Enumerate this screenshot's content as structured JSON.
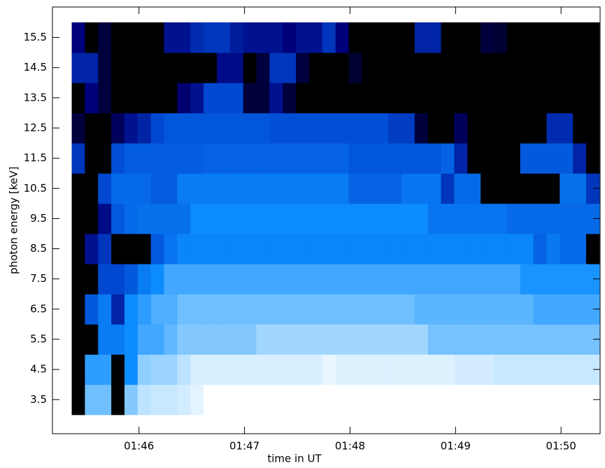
{
  "chart_data": {
    "type": "heatmap",
    "xlabel": "time in UT",
    "ylabel": "photon energy [keV]",
    "x": [
      45.425,
      45.55,
      45.675,
      45.8,
      45.925,
      46.05,
      46.175,
      46.3,
      46.425,
      46.55,
      46.675,
      46.8,
      46.925,
      47.05,
      47.175,
      47.3,
      47.425,
      47.55,
      47.675,
      47.8,
      47.925,
      48.05,
      48.175,
      48.3,
      48.425,
      48.55,
      48.675,
      48.8,
      48.925,
      49.05,
      49.175,
      49.3,
      49.425,
      49.55,
      49.675,
      49.8,
      49.925,
      50.05,
      50.175,
      50.3
    ],
    "y": [
      3.5,
      4.5,
      5.5,
      6.5,
      7.5,
      8.5,
      9.5,
      10.5,
      11.5,
      12.5,
      13.5,
      14.5,
      15.5
    ],
    "z": [
      [
        0,
        7.5,
        7.5,
        0,
        7.8,
        8.8,
        9,
        9,
        9.2,
        9.5,
        10,
        10,
        10,
        10,
        10,
        10,
        10,
        10,
        10,
        10,
        10,
        10,
        10,
        10,
        10,
        10,
        10,
        10,
        10,
        10,
        10,
        10,
        10,
        10,
        10,
        10,
        10,
        10,
        10,
        10
      ],
      [
        0,
        6.5,
        6.5,
        0,
        6,
        8,
        8.2,
        8.2,
        8.8,
        9.3,
        9.3,
        9.3,
        9.3,
        9.3,
        9.3,
        9.3,
        9.3,
        9.3,
        9.3,
        9.6,
        9.4,
        9.4,
        9.4,
        9.4,
        9.4,
        9.4,
        9.4,
        9.4,
        9.4,
        9.2,
        9.2,
        9.2,
        9,
        9,
        9,
        9,
        9,
        9,
        9,
        9
      ],
      [
        0,
        0,
        5.5,
        5.5,
        6,
        6.8,
        6.8,
        7.3,
        7.8,
        7.8,
        7.8,
        7.8,
        7.8,
        7.8,
        8.3,
        8.3,
        8.3,
        8.3,
        8.3,
        8.3,
        8.3,
        8.3,
        8.3,
        8.3,
        8.3,
        8.3,
        8.3,
        7.6,
        7.6,
        7.6,
        7.6,
        7.6,
        7.6,
        7.6,
        7.6,
        7.6,
        7.6,
        7.6,
        7.6,
        7.6
      ],
      [
        0,
        4.5,
        5.5,
        3,
        6,
        6.5,
        7,
        7,
        7.5,
        7.5,
        7.5,
        7.5,
        7.5,
        7.5,
        7.5,
        7.5,
        7.5,
        7.5,
        7.5,
        7.5,
        7.5,
        7.5,
        7.5,
        7.5,
        7.5,
        7.5,
        7.2,
        7.2,
        7.2,
        7.2,
        7.2,
        7.2,
        7.2,
        7.2,
        7.2,
        6.8,
        6.8,
        6.8,
        6.8,
        6.8
      ],
      [
        0,
        0,
        4,
        4,
        4.5,
        5.5,
        6,
        6.8,
        6.8,
        6.8,
        6.8,
        6.8,
        6.8,
        6.8,
        6.8,
        6.8,
        6.8,
        6.8,
        6.8,
        6.8,
        6.8,
        6.8,
        6.8,
        6.8,
        6.8,
        6.8,
        6.8,
        6.8,
        6.8,
        6.8,
        6.8,
        6.8,
        6.8,
        6.8,
        6.2,
        6.2,
        6.2,
        6.2,
        6.2,
        6.2
      ],
      [
        0,
        2.5,
        3.5,
        0,
        0,
        0,
        4.5,
        5.3,
        5.8,
        5.8,
        5.8,
        5.8,
        5.8,
        5.8,
        5.8,
        5.8,
        5.8,
        5.8,
        5.8,
        5.8,
        5.8,
        5.8,
        5.8,
        5.8,
        5.8,
        5.8,
        5.8,
        5.8,
        5.8,
        5.8,
        5.8,
        5.8,
        5.8,
        5.8,
        5.8,
        4.8,
        5.4,
        5,
        5,
        0
      ],
      [
        0,
        0,
        2.3,
        4.5,
        5,
        5.2,
        5.2,
        5.2,
        5.2,
        6,
        6,
        6,
        6,
        6,
        6,
        6,
        6,
        6,
        6,
        6,
        6,
        6,
        6,
        6,
        6,
        6,
        6,
        5.3,
        5.3,
        5.3,
        5.3,
        5.3,
        5.3,
        5,
        5,
        5,
        5,
        5,
        5,
        5
      ],
      [
        0,
        0,
        4,
        5,
        5,
        5,
        4.6,
        4.6,
        5.5,
        5.5,
        5.5,
        5.5,
        5.5,
        5.5,
        5.5,
        5.5,
        5.5,
        5.5,
        5.5,
        5.5,
        5.5,
        4.8,
        4.8,
        4.8,
        4.8,
        5.3,
        5.3,
        5.3,
        3.5,
        5,
        5,
        0,
        0,
        0,
        0,
        0,
        0,
        5.2,
        5.2,
        3.5
      ],
      [
        3.5,
        0,
        0,
        4.2,
        4.6,
        4.6,
        4.6,
        4.6,
        4.6,
        4.6,
        4.8,
        4.8,
        4.8,
        4.8,
        4.8,
        4.8,
        4.8,
        4.8,
        4.8,
        4.8,
        4.8,
        4.4,
        4.4,
        4.4,
        4.4,
        4.4,
        4.4,
        4.4,
        4.8,
        3,
        0,
        0,
        0,
        0,
        4.5,
        4.5,
        4.5,
        4.5,
        3,
        0
      ],
      [
        1,
        0,
        0,
        1.5,
        2.5,
        3,
        4,
        4.4,
        4.4,
        4.4,
        4.4,
        4.4,
        4.4,
        4.4,
        4.4,
        4.2,
        4.2,
        4.2,
        4.2,
        4.2,
        4.2,
        4.2,
        4.2,
        4.2,
        3.7,
        3.7,
        1,
        0,
        0,
        1.5,
        0,
        0,
        0,
        0,
        0,
        0,
        3.2,
        3.2,
        0,
        0
      ],
      [
        0,
        2,
        1,
        0,
        0,
        0,
        0,
        0,
        1.8,
        2.5,
        4,
        4,
        4,
        1,
        1,
        2.5,
        1,
        0,
        0,
        0,
        0,
        0,
        0,
        0,
        0,
        0,
        0,
        0,
        0,
        0,
        0,
        0,
        0,
        0,
        0,
        0,
        0,
        0,
        0,
        0
      ],
      [
        3,
        3,
        1,
        0,
        0,
        0,
        0,
        0,
        0,
        0,
        0,
        2.3,
        2.3,
        0,
        1,
        3.5,
        3.5,
        1,
        0,
        0,
        0,
        0.8,
        0,
        0,
        0,
        0,
        0,
        0,
        0,
        0,
        0,
        0,
        0,
        0,
        0,
        0,
        0,
        0,
        0,
        0
      ],
      [
        2,
        0,
        1,
        0,
        0,
        0,
        0,
        2.5,
        2.5,
        3.2,
        3.5,
        3.5,
        2.8,
        2.5,
        2.5,
        2.5,
        2,
        2.5,
        2.5,
        3.5,
        2,
        0,
        0,
        0,
        0,
        0,
        3,
        3,
        0,
        0,
        0,
        1,
        0.8,
        0,
        0,
        0,
        0,
        0,
        0,
        0
      ]
    ],
    "zlim": [
      0,
      10
    ],
    "colormap": [
      "#000000",
      "#00007a",
      "#0048d0",
      "#0c8cff",
      "#90d0ff",
      "#ffffff"
    ],
    "xlim": [
      45.18,
      50.37
    ],
    "ylim": [
      2.37,
      16.51
    ],
    "xticks": [
      {
        "value": 46,
        "label": "01:46"
      },
      {
        "value": 47,
        "label": "01:47"
      },
      {
        "value": 48,
        "label": "01:48"
      },
      {
        "value": 49,
        "label": "01:49"
      },
      {
        "value": 50,
        "label": "01:50"
      }
    ],
    "yticks": [
      3.5,
      4.5,
      5.5,
      6.5,
      7.5,
      8.5,
      9.5,
      10.5,
      11.5,
      12.5,
      13.5,
      14.5,
      15.5
    ]
  }
}
